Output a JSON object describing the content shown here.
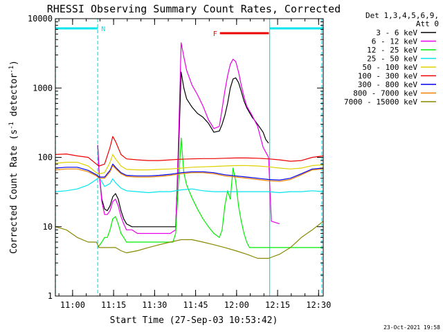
{
  "chart_data": {
    "type": "line",
    "title": "RHESSI Observing Summary Count Rates, Corrected",
    "xlabel": "Start Time (27-Sep-03 10:53:42)",
    "ylabel": "Corrected Count Rate (s-1 detector-1)",
    "ylabel_parts": [
      "Corrected Count Rate (s",
      "-1",
      " detector",
      "-1",
      ")"
    ],
    "footer": "23-Oct-2021 19:58",
    "x_unit": "minutes after 10:53:42",
    "xlim": [
      0,
      98
    ],
    "yscale": "log",
    "ylim": [
      1,
      10000
    ],
    "x_ticks": [
      {
        "x": 6.3,
        "label": "11:00"
      },
      {
        "x": 21.3,
        "label": "11:15"
      },
      {
        "x": 36.3,
        "label": "11:30"
      },
      {
        "x": 51.3,
        "label": "11:45"
      },
      {
        "x": 66.3,
        "label": "12:00"
      },
      {
        "x": 81.3,
        "label": "12:15"
      },
      {
        "x": 96.3,
        "label": "12:30"
      }
    ],
    "y_ticks": [
      {
        "y": 1,
        "label": "1"
      },
      {
        "y": 10,
        "label": "10"
      },
      {
        "y": 100,
        "label": "100"
      },
      {
        "y": 1000,
        "label": "1000"
      },
      {
        "y": 10000,
        "label": "10000"
      }
    ],
    "legend": {
      "title_lines": [
        "Det 1,3,4,5,6,9,",
        "Att 0"
      ],
      "placement": "right"
    },
    "flags": [
      {
        "label": "N",
        "color": "#00e5ee",
        "x_range": [
          0,
          15.5
        ]
      },
      {
        "label": "",
        "color": "#00e5ee",
        "x_range": [
          78.4,
          98
        ]
      },
      {
        "label": "F",
        "color": "#ee0000",
        "x_range": [
          60.2,
          78.1
        ]
      }
    ],
    "vlines": [
      {
        "x": 0,
        "color": "#00e5ee",
        "style": "dashed"
      },
      {
        "x": 15.5,
        "color": "#00e5ee",
        "style": "dashed"
      },
      {
        "x": 78.4,
        "color": "#00e5ee",
        "style": "solid"
      },
      {
        "x": 97.5,
        "color": "#00e5ee",
        "style": "dashed"
      }
    ],
    "series": [
      {
        "name": "3 - 6 keV",
        "color": "#000000",
        "x": [
          0,
          15.3,
          15.5,
          16,
          17,
          18,
          19,
          20,
          21,
          22,
          23,
          24,
          25,
          26,
          28,
          30,
          34,
          38,
          42,
          44,
          45,
          46,
          47,
          48,
          50,
          52,
          54,
          56,
          58,
          60,
          61,
          62,
          63,
          64,
          65,
          66,
          67,
          68,
          69,
          70,
          72,
          74,
          76,
          77,
          78,
          78.3
        ],
        "y": [
          null,
          null,
          150,
          60,
          25,
          18,
          17,
          20,
          27,
          30,
          25,
          17,
          13,
          11,
          10,
          10,
          10,
          10,
          10,
          10,
          100,
          1700,
          1000,
          700,
          530,
          430,
          380,
          310,
          230,
          240,
          300,
          400,
          600,
          1000,
          1350,
          1400,
          1200,
          900,
          650,
          520,
          380,
          300,
          230,
          180,
          160,
          null
        ]
      },
      {
        "name": "6 - 12 keV",
        "color": "#e800e8",
        "x": [
          0,
          15.3,
          15.5,
          16,
          17,
          18,
          19,
          20,
          21,
          22,
          23,
          24,
          25,
          26,
          28,
          30,
          34,
          38,
          42,
          44,
          45,
          46,
          47,
          48,
          50,
          52,
          54,
          56,
          58,
          60,
          61,
          62,
          63,
          64,
          65,
          66,
          67,
          68,
          69,
          70,
          72,
          74,
          76,
          78,
          79,
          82
        ],
        "y": [
          null,
          null,
          150,
          60,
          23,
          15,
          15,
          17,
          23,
          25,
          20,
          14,
          11,
          9,
          9,
          8,
          8,
          8,
          8,
          9,
          150,
          4500,
          2800,
          1800,
          1100,
          800,
          550,
          350,
          260,
          280,
          500,
          900,
          1500,
          2200,
          2600,
          2400,
          1700,
          1100,
          750,
          550,
          400,
          280,
          140,
          100,
          12,
          11
        ]
      },
      {
        "name": "12 - 25 keV",
        "color": "#00ee00",
        "x": [
          0,
          15.3,
          15.5,
          17,
          18,
          19,
          20,
          21,
          22,
          23,
          24,
          25,
          26,
          30,
          36,
          40,
          43,
          44,
          45,
          46,
          47,
          48,
          50,
          52,
          54,
          56,
          58,
          60,
          61,
          62,
          63,
          64,
          65,
          66,
          67,
          68,
          69,
          70,
          71,
          72,
          74,
          78,
          82,
          88,
          98
        ],
        "y": [
          null,
          null,
          5,
          6,
          7,
          7,
          9,
          13,
          14,
          11,
          8,
          7,
          6,
          6,
          6,
          6,
          6,
          8,
          40,
          190,
          60,
          40,
          26,
          18,
          13,
          10,
          8,
          7,
          9,
          20,
          33,
          25,
          70,
          45,
          20,
          12,
          8,
          6,
          5,
          5,
          5,
          5,
          5,
          5,
          5
        ]
      },
      {
        "name": "25 - 50 keV",
        "color": "#00e5ee",
        "x": [
          0,
          4,
          8,
          12,
          15,
          16,
          18,
          20,
          21,
          22,
          24,
          26,
          30,
          34,
          38,
          42,
          46,
          50,
          54,
          58,
          62,
          66,
          70,
          74,
          78,
          82,
          86,
          90,
          94,
          98
        ],
        "y": [
          32,
          33,
          35,
          40,
          48,
          52,
          38,
          42,
          49,
          43,
          36,
          33,
          32,
          31,
          32,
          32,
          34,
          35,
          33,
          32,
          32,
          32,
          32,
          32,
          32,
          31,
          32,
          32,
          33,
          32
        ]
      },
      {
        "name": "50 - 100 keV",
        "color": "#e0d000",
        "x": [
          0,
          4,
          8,
          12,
          15,
          16,
          18,
          20,
          21,
          22,
          24,
          26,
          30,
          34,
          38,
          42,
          46,
          50,
          54,
          58,
          62,
          66,
          70,
          74,
          78,
          82,
          86,
          90,
          94,
          98
        ],
        "y": [
          82,
          85,
          85,
          75,
          60,
          58,
          60,
          85,
          110,
          95,
          75,
          67,
          66,
          66,
          67,
          68,
          70,
          72,
          73,
          74,
          75,
          76,
          76,
          75,
          73,
          70,
          68,
          70,
          76,
          78
        ]
      },
      {
        "name": "100 - 300 keV",
        "color": "#ee0000",
        "x": [
          0,
          4,
          8,
          12,
          15,
          16,
          18,
          20,
          21,
          22,
          24,
          26,
          30,
          34,
          38,
          42,
          46,
          50,
          54,
          58,
          62,
          66,
          70,
          74,
          78,
          82,
          86,
          90,
          94,
          98
        ],
        "y": [
          110,
          112,
          105,
          100,
          80,
          75,
          80,
          140,
          200,
          170,
          110,
          95,
          92,
          90,
          90,
          92,
          94,
          95,
          96,
          96,
          97,
          98,
          98,
          97,
          95,
          92,
          88,
          90,
          100,
          105
        ]
      },
      {
        "name": "300 - 800 keV",
        "color": "#0000ee",
        "x": [
          0,
          4,
          8,
          12,
          15,
          16,
          18,
          20,
          21,
          22,
          24,
          26,
          30,
          34,
          38,
          42,
          46,
          50,
          54,
          58,
          62,
          66,
          70,
          74,
          78,
          82,
          86,
          90,
          94,
          98
        ],
        "y": [
          70,
          72,
          72,
          65,
          56,
          52,
          52,
          65,
          80,
          72,
          60,
          55,
          54,
          54,
          55,
          57,
          60,
          62,
          62,
          60,
          56,
          54,
          52,
          50,
          48,
          47,
          50,
          58,
          68,
          70
        ]
      },
      {
        "name": "800 - 7000 keV",
        "color": "#ee8000",
        "x": [
          0,
          4,
          8,
          12,
          15,
          16,
          18,
          20,
          21,
          22,
          24,
          26,
          30,
          34,
          38,
          42,
          46,
          50,
          54,
          58,
          62,
          66,
          70,
          74,
          78,
          82,
          86,
          90,
          94,
          98
        ],
        "y": [
          66,
          68,
          68,
          62,
          54,
          50,
          50,
          62,
          76,
          69,
          58,
          53,
          52,
          52,
          53,
          55,
          58,
          60,
          60,
          58,
          54,
          52,
          50,
          48,
          46,
          45,
          48,
          56,
          66,
          68
        ]
      },
      {
        "name": "7000 - 15000 keV",
        "color": "#888800",
        "x": [
          0,
          4,
          8,
          12,
          15,
          16,
          18,
          20,
          22,
          24,
          26,
          30,
          34,
          38,
          42,
          46,
          50,
          54,
          58,
          62,
          66,
          70,
          74,
          78,
          82,
          86,
          90,
          94,
          98
        ],
        "y": [
          10,
          9,
          7,
          6,
          6,
          5,
          5,
          5,
          5,
          4.5,
          4.2,
          4.5,
          5,
          5.5,
          6,
          6.5,
          6.5,
          6,
          5.5,
          5,
          4.5,
          4,
          3.5,
          3.5,
          4,
          5,
          7,
          9,
          12
        ]
      }
    ]
  }
}
